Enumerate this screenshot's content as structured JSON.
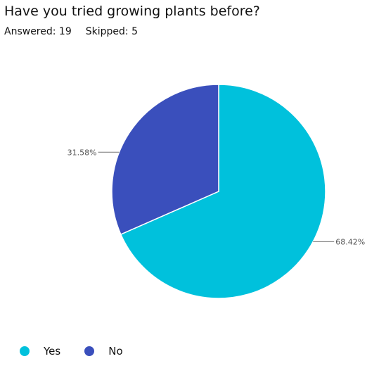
{
  "question": {
    "title": "Have you tried growing plants before?",
    "answered_label": "Answered: 19",
    "skipped_label": "Skipped: 5"
  },
  "chart_data": {
    "type": "pie",
    "categories": [
      "Yes",
      "No"
    ],
    "values": [
      68.42,
      31.58
    ],
    "labels": [
      "68.42%",
      "31.58%"
    ],
    "colors": [
      "#00C1DC",
      "#3A4FBC"
    ],
    "legend_position": "bottom-left"
  },
  "legend": {
    "items": [
      {
        "label": "Yes",
        "color": "#00C1DC"
      },
      {
        "label": "No",
        "color": "#3A4FBC"
      }
    ]
  }
}
